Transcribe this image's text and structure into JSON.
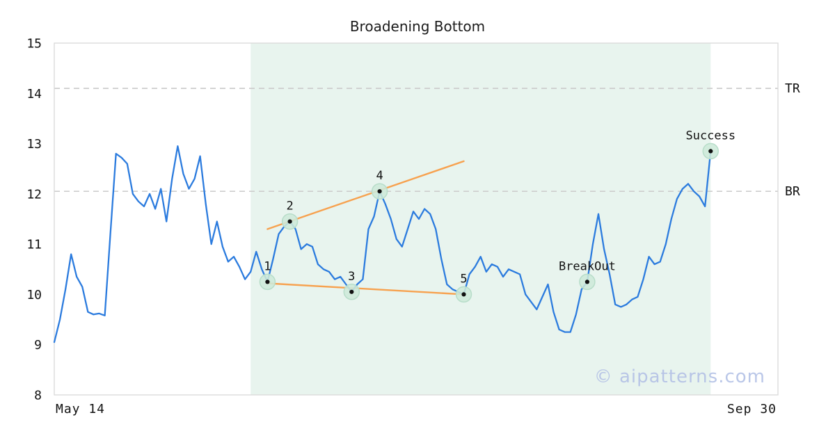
{
  "chart_data": {
    "type": "line",
    "title": "Broadening Bottom",
    "xlabel_left": "May 14",
    "xlabel_right": "Sep 30",
    "ylim": [
      8,
      15
    ],
    "yticks": [
      8,
      9,
      10,
      11,
      12,
      13,
      14,
      15
    ],
    "xlim_days": [
      0,
      129
    ],
    "grid": false,
    "legend": "none",
    "series": [
      {
        "name": "price",
        "color": "#2b7bde",
        "x_start_day": 0,
        "values": [
          9.05,
          9.5,
          10.1,
          10.8,
          10.35,
          10.15,
          9.65,
          9.6,
          9.62,
          9.58,
          11.2,
          12.8,
          12.72,
          12.6,
          12.0,
          11.85,
          11.75,
          12.0,
          11.7,
          12.1,
          11.45,
          12.3,
          12.95,
          12.4,
          12.1,
          12.3,
          12.75,
          11.8,
          11.0,
          11.45,
          10.95,
          10.65,
          10.75,
          10.55,
          10.3,
          10.45,
          10.85,
          10.5,
          10.25,
          10.7,
          11.2,
          11.35,
          11.45,
          11.3,
          10.9,
          11.0,
          10.95,
          10.6,
          10.5,
          10.45,
          10.3,
          10.35,
          10.2,
          10.05,
          10.2,
          10.3,
          11.3,
          11.55,
          12.05,
          11.8,
          11.5,
          11.1,
          10.95,
          11.3,
          11.65,
          11.5,
          11.7,
          11.6,
          11.3,
          10.7,
          10.2,
          10.1,
          10.05,
          10.0,
          10.4,
          10.55,
          10.75,
          10.45,
          10.6,
          10.55,
          10.35,
          10.5,
          10.45,
          10.4,
          10.0,
          9.85,
          9.7,
          9.95,
          10.2,
          9.65,
          9.3,
          9.25,
          9.25,
          9.6,
          10.1,
          10.25,
          11.0,
          11.6,
          10.9,
          10.4,
          9.8,
          9.75,
          9.8,
          9.9,
          9.95,
          10.3,
          10.75,
          10.6,
          10.65,
          11.0,
          11.5,
          11.9,
          12.1,
          12.2,
          12.05,
          11.95,
          11.75,
          12.85
        ]
      }
    ],
    "pattern_region": {
      "start_day": 35,
      "end_day": 117,
      "color": "#e8f4ee"
    },
    "hlines": [
      {
        "label": "TR",
        "value": 14.1,
        "color": "#cdcdcd",
        "style": "dashed"
      },
      {
        "label": "BR",
        "value": 12.05,
        "color": "#cdcdcd",
        "style": "dashed"
      }
    ],
    "trendlines": [
      {
        "name": "upper",
        "from": {
          "day": 38,
          "value": 11.3
        },
        "to": {
          "day": 73,
          "value": 12.65
        },
        "color": "#f7a14e"
      },
      {
        "name": "lower",
        "from": {
          "day": 38,
          "value": 10.22
        },
        "to": {
          "day": 73,
          "value": 10.0
        },
        "color": "#f7a14e"
      }
    ],
    "markers": [
      {
        "label": "1",
        "day": 38,
        "value": 10.25
      },
      {
        "label": "2",
        "day": 42,
        "value": 11.45
      },
      {
        "label": "3",
        "day": 53,
        "value": 10.05
      },
      {
        "label": "4",
        "day": 58,
        "value": 12.05
      },
      {
        "label": "5",
        "day": 73,
        "value": 10.0
      },
      {
        "label": "BreakOut",
        "day": 95,
        "value": 10.25
      },
      {
        "label": "Success",
        "day": 117,
        "value": 12.85
      }
    ],
    "marker_style": {
      "ring_fill": "#cde9d9",
      "ring_stroke": "#b7ddc9",
      "dot": "#111111"
    },
    "watermark": "© aipatterns.com",
    "watermark_color": "#b3c1e6",
    "border_color": "#d9d9d9",
    "text_color": "#111111"
  }
}
